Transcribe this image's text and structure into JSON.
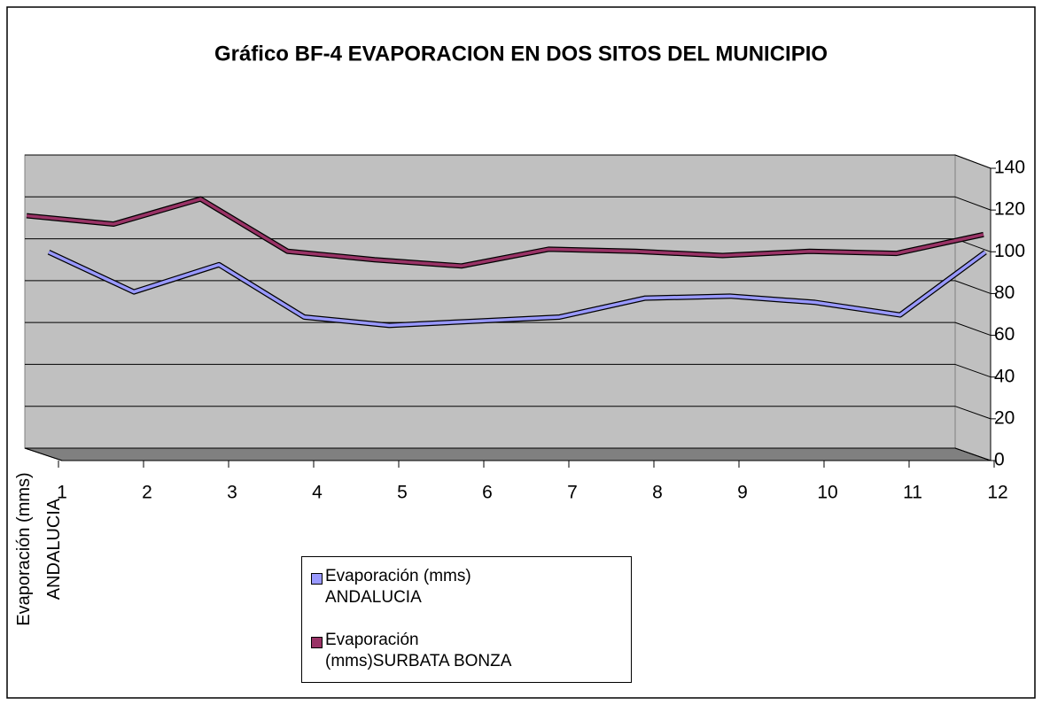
{
  "chart_data": {
    "type": "line",
    "title": "Gráfico BF-4 EVAPORACION EN DOS SITOS DEL MUNICIPIO",
    "z_axis_label": "Evaporación (mms) ANDALUCIA",
    "categories": [
      "1",
      "2",
      "3",
      "4",
      "5",
      "6",
      "7",
      "8",
      "9",
      "10",
      "11",
      "12"
    ],
    "series": [
      {
        "name": "Evaporación (mms) ANDALUCIA",
        "color": "#9999ff",
        "values": [
          97,
          78,
          91,
          66,
          62,
          64,
          66,
          75,
          76,
          73,
          67,
          97
        ]
      },
      {
        "name": "Evaporación (mms)SURBATA BONZA",
        "color": "#993366",
        "values": [
          111,
          107,
          119,
          94,
          90,
          87,
          95,
          94,
          92,
          94,
          93,
          102
        ]
      }
    ],
    "ylim": [
      0,
      140
    ],
    "yticks": [
      0,
      20,
      40,
      60,
      80,
      100,
      120,
      140
    ],
    "grid": true
  }
}
